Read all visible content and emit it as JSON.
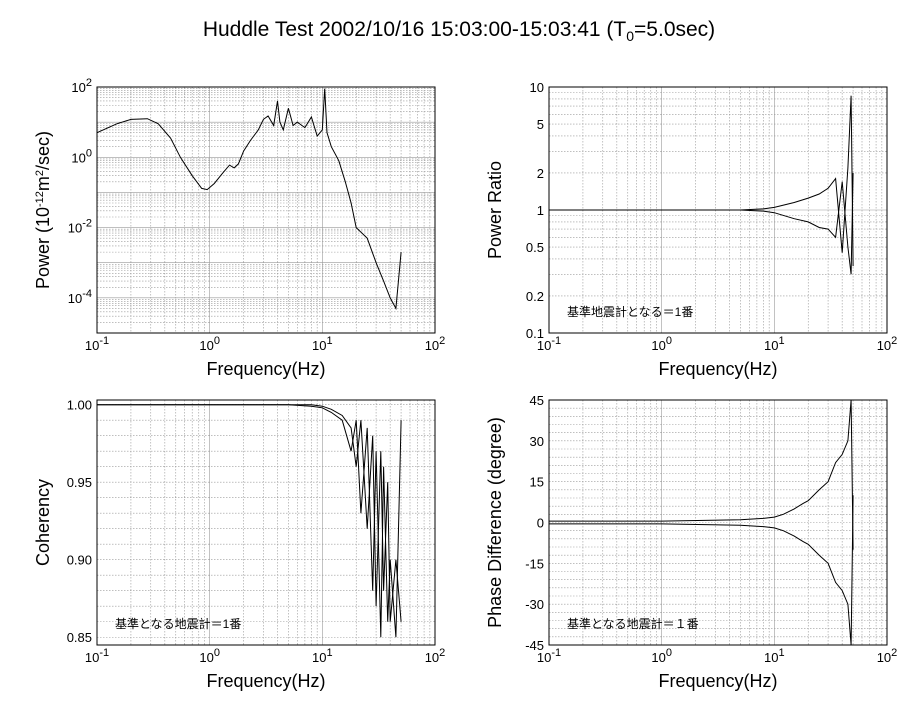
{
  "figure": {
    "title_main": "Huddle Test  2002/10/16  15:03:00-15:03:41 (T",
    "title_sub": "0",
    "title_tail": "=5.0sec)"
  },
  "chart_data": [
    {
      "id": "power",
      "type": "line",
      "x_scale": "log",
      "y_scale": "log",
      "xlim": [
        0.1,
        100
      ],
      "ylim": [
        1e-05,
        100
      ],
      "grid": true,
      "xlabel": "Frequency(Hz)",
      "ylabel_parts": [
        "Power (10",
        "-12",
        "m",
        "2",
        "/sec)"
      ],
      "x_ticks": [
        {
          "value": 0.1,
          "base": "10",
          "exp": "-1"
        },
        {
          "value": 1,
          "base": "10",
          "exp": "0"
        },
        {
          "value": 10,
          "base": "10",
          "exp": "1"
        },
        {
          "value": 100,
          "base": "10",
          "exp": "2"
        }
      ],
      "y_ticks": [
        {
          "value": 0.0001,
          "base": "10",
          "exp": "-4"
        },
        {
          "value": 0.01,
          "base": "10",
          "exp": "-2"
        },
        {
          "value": 1,
          "base": "10",
          "exp": "0"
        },
        {
          "value": 100,
          "base": "10",
          "exp": "2"
        }
      ],
      "annotation": "",
      "series": [
        {
          "x": [
            0.1,
            0.15,
            0.2,
            0.28,
            0.35,
            0.45,
            0.55,
            0.7,
            0.85,
            0.95,
            1.1,
            1.3,
            1.5,
            1.65,
            1.8,
            2.0,
            2.3,
            2.7,
            3.0,
            3.3,
            3.7,
            4.0,
            4.2,
            4.5,
            5.0,
            5.5,
            6.0,
            7.0,
            8.0,
            9.0,
            10.0,
            10.5,
            11.0,
            12.0,
            14.0,
            16.0,
            18.0,
            20.0,
            25.0,
            30.0,
            35.0,
            40.0,
            45.0,
            50.0
          ],
          "y": [
            5.0,
            9.0,
            12.0,
            12.5,
            9.0,
            3.5,
            1.0,
            0.3,
            0.13,
            0.12,
            0.18,
            0.35,
            0.6,
            0.5,
            0.65,
            1.5,
            3.0,
            6.0,
            12.0,
            15.0,
            8.0,
            40.0,
            10.0,
            6.0,
            25.0,
            8.0,
            10.0,
            7.0,
            14.0,
            4.0,
            6.0,
            90.0,
            5.0,
            2.0,
            0.8,
            0.2,
            0.05,
            0.01,
            0.005,
            0.001,
            0.0003,
            0.0001,
            5e-05,
            0.002
          ]
        }
      ]
    },
    {
      "id": "ratio",
      "type": "line",
      "x_scale": "log",
      "y_scale": "log",
      "xlim": [
        0.1,
        100
      ],
      "ylim": [
        0.1,
        10
      ],
      "grid": true,
      "xlabel": "Frequency(Hz)",
      "ylabel_parts": [
        "Power Ratio"
      ],
      "x_ticks": [
        {
          "value": 0.1,
          "base": "10",
          "exp": "-1"
        },
        {
          "value": 1,
          "base": "10",
          "exp": "0"
        },
        {
          "value": 10,
          "base": "10",
          "exp": "1"
        },
        {
          "value": 100,
          "base": "10",
          "exp": "2"
        }
      ],
      "y_ticks": [
        {
          "value": 0.1,
          "label": "0.1"
        },
        {
          "value": 0.2,
          "label": "0.2"
        },
        {
          "value": 0.5,
          "label": "0.5"
        },
        {
          "value": 1,
          "label": "1"
        },
        {
          "value": 2,
          "label": "2"
        },
        {
          "value": 5,
          "label": "5"
        },
        {
          "value": 10,
          "label": "10"
        }
      ],
      "annotation": "基準地震計となる＝1番",
      "series": [
        {
          "x": [
            0.1,
            1,
            5,
            8,
            10,
            15,
            20,
            25,
            30,
            35,
            40,
            45,
            48,
            50
          ],
          "y": [
            1.0,
            1.0,
            1.0,
            1.02,
            1.05,
            1.15,
            1.25,
            1.35,
            1.5,
            1.8,
            0.45,
            2.2,
            8.5,
            0.35
          ]
        },
        {
          "x": [
            0.1,
            1,
            5,
            8,
            10,
            15,
            20,
            25,
            30,
            35,
            40,
            45,
            48,
            50
          ],
          "y": [
            1.0,
            1.0,
            1.0,
            0.98,
            0.95,
            0.85,
            0.8,
            0.72,
            0.7,
            0.6,
            1.7,
            0.5,
            0.3,
            2.0
          ]
        }
      ]
    },
    {
      "id": "coherency",
      "type": "line",
      "x_scale": "log",
      "y_scale": "linear",
      "xlim": [
        0.1,
        100
      ],
      "ylim": [
        0.845,
        1.003
      ],
      "grid": true,
      "xlabel": "Frequency(Hz)",
      "ylabel_parts": [
        "Coherency"
      ],
      "x_ticks": [
        {
          "value": 0.1,
          "base": "10",
          "exp": "-1"
        },
        {
          "value": 1,
          "base": "10",
          "exp": "0"
        },
        {
          "value": 10,
          "base": "10",
          "exp": "1"
        },
        {
          "value": 100,
          "base": "10",
          "exp": "2"
        }
      ],
      "y_ticks": [
        {
          "value": 0.85,
          "label": "0.85"
        },
        {
          "value": 0.9,
          "label": "0.90"
        },
        {
          "value": 0.95,
          "label": "0.95"
        },
        {
          "value": 1.0,
          "label": "1.00"
        }
      ],
      "annotation": "基準となる地震計＝1番",
      "series": [
        {
          "x": [
            0.1,
            1,
            5,
            8,
            10,
            12,
            15,
            18,
            20,
            22,
            25,
            28,
            30,
            33,
            35,
            38,
            40,
            45,
            50
          ],
          "y": [
            1.0,
            1.0,
            1.0,
            0.999,
            0.998,
            0.995,
            0.99,
            0.97,
            0.99,
            0.93,
            0.985,
            0.88,
            0.97,
            0.85,
            0.96,
            0.86,
            0.9,
            0.85,
            0.99
          ]
        },
        {
          "x": [
            0.1,
            1,
            5,
            8,
            10,
            12,
            15,
            18,
            20,
            22,
            25,
            28,
            30,
            33,
            35,
            38,
            40,
            45,
            50
          ],
          "y": [
            1.0,
            1.0,
            1.0,
            1.0,
            0.999,
            0.997,
            0.993,
            0.985,
            0.96,
            0.99,
            0.92,
            0.98,
            0.87,
            0.97,
            0.88,
            0.95,
            0.86,
            0.9,
            0.86
          ]
        }
      ]
    },
    {
      "id": "phase",
      "type": "line",
      "x_scale": "log",
      "y_scale": "linear",
      "xlim": [
        0.1,
        100
      ],
      "ylim": [
        -45,
        45
      ],
      "grid": true,
      "xlabel": "Frequency(Hz)",
      "ylabel_parts": [
        "Phase Difference (degree)"
      ],
      "x_ticks": [
        {
          "value": 0.1,
          "base": "10",
          "exp": "-1"
        },
        {
          "value": 1,
          "base": "10",
          "exp": "0"
        },
        {
          "value": 10,
          "base": "10",
          "exp": "1"
        },
        {
          "value": 100,
          "base": "10",
          "exp": "2"
        }
      ],
      "y_ticks": [
        {
          "value": -45,
          "label": "-45"
        },
        {
          "value": -30,
          "label": "-30"
        },
        {
          "value": -15,
          "label": "-15"
        },
        {
          "value": 0,
          "label": "0"
        },
        {
          "value": 15,
          "label": "15"
        },
        {
          "value": 30,
          "label": "30"
        },
        {
          "value": 45,
          "label": "45"
        }
      ],
      "annotation": "基準となる地震計＝１番",
      "series": [
        {
          "x": [
            0.1,
            1,
            5,
            8,
            10,
            12,
            15,
            18,
            20,
            25,
            30,
            35,
            40,
            45,
            48,
            50
          ],
          "y": [
            0.5,
            0.5,
            1.0,
            1.5,
            2.0,
            3.0,
            5.0,
            7.0,
            8.0,
            12.0,
            15.0,
            22.0,
            25.0,
            30.0,
            45.0,
            -10.0
          ]
        },
        {
          "x": [
            0.1,
            1,
            5,
            8,
            10,
            12,
            15,
            18,
            20,
            25,
            30,
            35,
            40,
            45,
            48,
            50
          ],
          "y": [
            -0.5,
            -0.5,
            -1.0,
            -1.5,
            -2.0,
            -3.0,
            -5.0,
            -7.0,
            -8.0,
            -12.0,
            -15.0,
            -22.0,
            -25.0,
            -30.0,
            -45.0,
            10.0
          ]
        }
      ]
    }
  ]
}
